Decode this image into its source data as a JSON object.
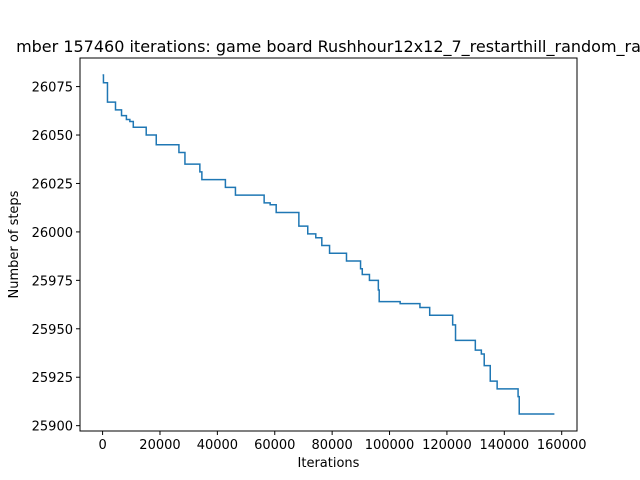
{
  "chart_data": {
    "type": "line",
    "title": "mber 157460 iterations: game board Rushhour12x12_7_restarthill_random_ra",
    "x_label": "Iterations",
    "y_label": "Number of steps",
    "x": [
      0,
      300,
      300,
      1700,
      1700,
      4500,
      4500,
      6600,
      6600,
      8300,
      8300,
      9500,
      9500,
      10700,
      10700,
      15200,
      15200,
      18700,
      18700,
      26600,
      26600,
      28700,
      28700,
      33900,
      33900,
      34600,
      34600,
      42800,
      42800,
      46300,
      46300,
      56300,
      56300,
      58400,
      58400,
      60500,
      60500,
      68400,
      68400,
      71500,
      71500,
      74300,
      74300,
      76400,
      76400,
      79100,
      79100,
      85000,
      85000,
      89900,
      89900,
      90500,
      90500,
      93000,
      93000,
      96100,
      96100,
      96400,
      96400,
      103700,
      103700,
      110600,
      110600,
      114000,
      114000,
      122000,
      122000,
      123000,
      123000,
      129900,
      129900,
      132000,
      132000,
      133000,
      133000,
      135100,
      135100,
      137500,
      137500,
      144800,
      144800,
      145200,
      145200,
      157460
    ],
    "series": [
      {
        "color": "#1f77b4",
        "values": [
          26081,
          26081,
          26077,
          26077,
          26067,
          26067,
          26063,
          26063,
          26060,
          26060,
          26058,
          26058,
          26057,
          26057,
          26054,
          26054,
          26050,
          26050,
          26045,
          26045,
          26041,
          26041,
          26035,
          26035,
          26031,
          26031,
          26027,
          26027,
          26023,
          26023,
          26019,
          26019,
          26015,
          26015,
          26014,
          26014,
          26010,
          26010,
          26003,
          26003,
          25999,
          25999,
          25997,
          25997,
          25993,
          25993,
          25989,
          25989,
          25985,
          25985,
          25981,
          25981,
          25978,
          25978,
          25975,
          25975,
          25970,
          25970,
          25964,
          25964,
          25963,
          25963,
          25961,
          25961,
          25957,
          25957,
          25952,
          25952,
          25944,
          25944,
          25939,
          25939,
          25937,
          25937,
          25931,
          25931,
          25923,
          25923,
          25919,
          25919,
          25915,
          25915,
          25906,
          25906
        ]
      }
    ],
    "xlim": [
      -7873,
      165333
    ],
    "xticks": [
      0,
      20000,
      40000,
      60000,
      80000,
      100000,
      120000,
      140000,
      160000
    ],
    "ylim": [
      25897.25,
      26089.75
    ],
    "yticks": [
      25900,
      25925,
      25950,
      25975,
      26000,
      26025,
      26050,
      26075
    ],
    "grid": false
  }
}
